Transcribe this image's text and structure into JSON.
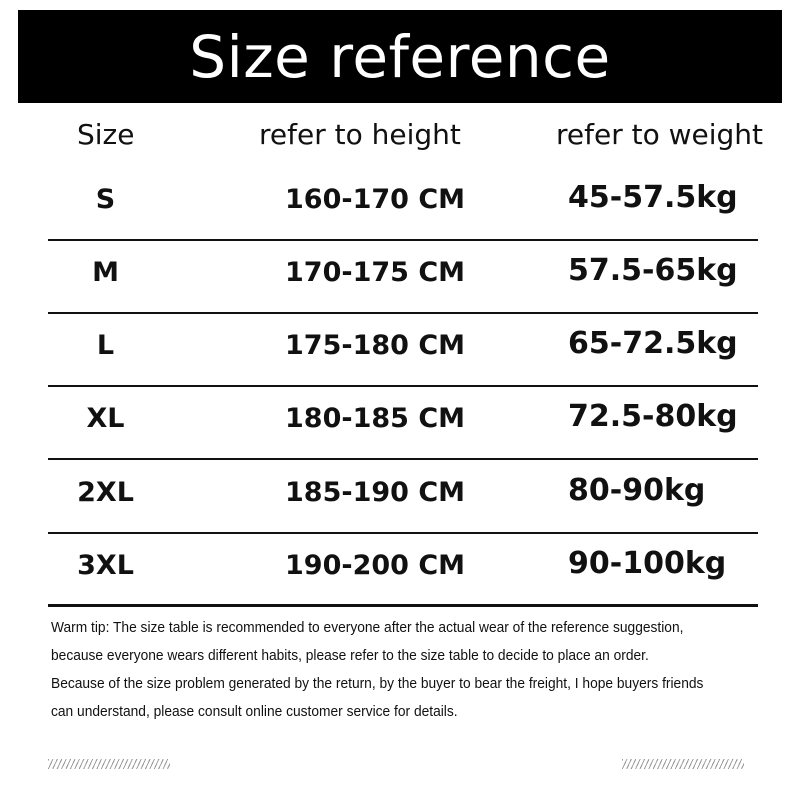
{
  "title": "Size reference",
  "headers": {
    "size": "Size",
    "height": "refer to height",
    "weight": "refer to weight"
  },
  "rows": [
    {
      "size": "S",
      "height": "160-170 CM",
      "weight": "45-57.5kg"
    },
    {
      "size": "M",
      "height": "170-175 CM",
      "weight": "57.5-65kg"
    },
    {
      "size": "L",
      "height": "175-180 CM",
      "weight": "65-72.5kg"
    },
    {
      "size": "XL",
      "height": "180-185 CM",
      "weight": "72.5-80kg"
    },
    {
      "size": "2XL",
      "height": "185-190 CM",
      "weight": "80-90kg"
    },
    {
      "size": "3XL",
      "height": "190-200 CM",
      "weight": "90-100kg"
    }
  ],
  "tips": [
    "Warm tip: The size table is recommended to everyone after the actual wear of the reference suggestion, because everyone wears different habits, please refer to the size table to decide to place an order.",
    "Because of the size problem generated by the return, by the buyer to bear the freight, I hope buyers friends can understand, please consult online customer service for details."
  ]
}
